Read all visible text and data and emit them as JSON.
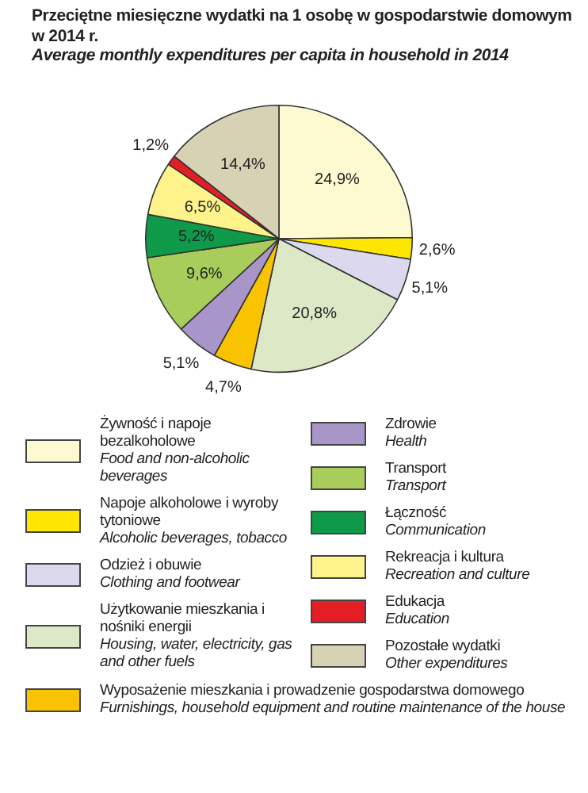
{
  "chart_data": {
    "type": "pie",
    "title": "Przeciętne miesięczne wydatki na 1 osobę w gospodarstwie domowym w 2014 r.",
    "subtitle": "Average monthly expenditures per capita in household in 2014",
    "categories": [
      "Żywność i napoje bezalkoholowe\nFood and non-alcoholic beverages",
      "Napoje alkoholowe i wyroby tytoniowe\nAlcoholic beverages, tobacco",
      "Odzież i obuwie\nClothing and footwear",
      "Użytkowanie mieszkania i nośniki energii\nHousing, water, electricity, gas and other fuels",
      "Wyposażenie mieszkania i prowadzenie gospodarstwa domowego\nFurnishings, household equipment and routine maintenance of the house",
      "Zdrowie\nHealth",
      "Transport\nTransport",
      "Łączność\nCommunication",
      "Rekreacja i kultura\nRecreation and culture",
      "Edukacja\nEducation",
      "Pozostałe wydatki\nOther expenditures"
    ],
    "values": [
      24.9,
      2.6,
      5.1,
      20.8,
      4.7,
      5.1,
      9.6,
      5.2,
      6.5,
      1.2,
      14.4
    ],
    "value_labels": [
      "24,9%",
      "2,6%",
      "5,1%",
      "20,8%",
      "4,7%",
      "5,1%",
      "9,6%",
      "5,2%",
      "6,5%",
      "1,2%",
      "14,4%"
    ],
    "colors": [
      "#fdf9d0",
      "#ffe600",
      "#dcd9ee",
      "#dde9c6",
      "#f9c300",
      "#a996c8",
      "#a8cd5a",
      "#0f9a4a",
      "#fdf38a",
      "#e31e24",
      "#d8d2b5"
    ],
    "legend": "bottom"
  }
}
